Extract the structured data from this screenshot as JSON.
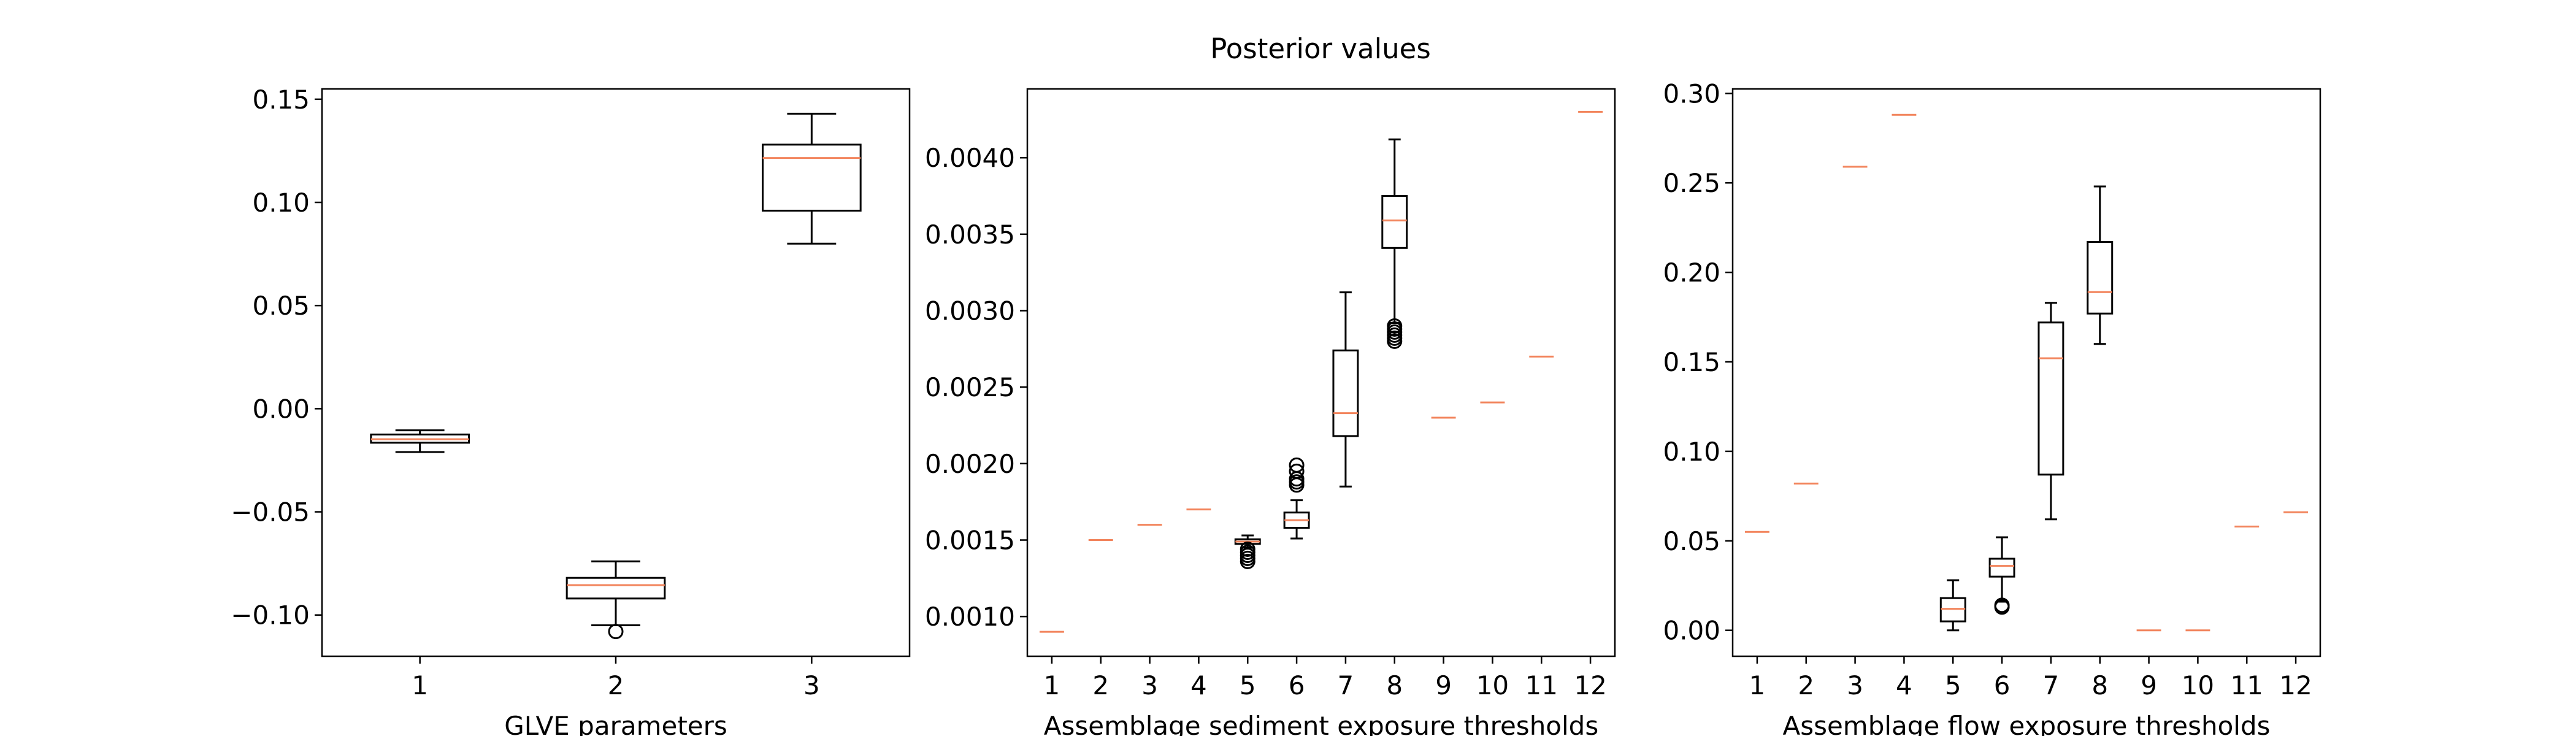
{
  "figure": {
    "suptitle": "Posterior values",
    "median_color": "#f2845c",
    "box_color": "#000000"
  },
  "chart_data": [
    {
      "type": "box",
      "title": "",
      "xlabel": "GLVE parameters",
      "ylabel": "",
      "categories": [
        "1",
        "2",
        "3"
      ],
      "ylim": [
        -0.12,
        0.155
      ],
      "yticks": [
        -0.1,
        -0.05,
        0.0,
        0.05,
        0.1,
        0.15
      ],
      "ytick_labels": [
        "−0.10",
        "−0.05",
        "0.00",
        "0.05",
        "0.10",
        "0.15"
      ],
      "boxes": [
        {
          "q1": -0.0165,
          "median": -0.0148,
          "q3": -0.0125,
          "whislo": -0.021,
          "whishi": -0.0105,
          "fliers": []
        },
        {
          "q1": -0.092,
          "median": -0.0855,
          "q3": -0.082,
          "whislo": -0.105,
          "whishi": -0.074,
          "fliers": [
            -0.108
          ]
        },
        {
          "q1": 0.096,
          "median": 0.1215,
          "q3": 0.128,
          "whislo": 0.08,
          "whishi": 0.143,
          "fliers": []
        }
      ]
    },
    {
      "type": "box",
      "title": "",
      "xlabel": "Assemblage sediment exposure thresholds",
      "ylabel": "",
      "categories": [
        "1",
        "2",
        "3",
        "4",
        "5",
        "6",
        "7",
        "8",
        "9",
        "10",
        "11",
        "12"
      ],
      "ylim": [
        0.00074,
        0.00445
      ],
      "yticks": [
        0.001,
        0.0015,
        0.002,
        0.0025,
        0.003,
        0.0035,
        0.004
      ],
      "ytick_labels": [
        "0.0010",
        "0.0015",
        "0.0020",
        "0.0025",
        "0.0030",
        "0.0035",
        "0.0040"
      ],
      "boxes": [
        {
          "q1": 0.0009,
          "median": 0.0009,
          "q3": 0.0009,
          "whislo": 0.0009,
          "whishi": 0.0009,
          "fliers": []
        },
        {
          "q1": 0.0015,
          "median": 0.0015,
          "q3": 0.0015,
          "whislo": 0.0015,
          "whishi": 0.0015,
          "fliers": []
        },
        {
          "q1": 0.0016,
          "median": 0.0016,
          "q3": 0.0016,
          "whislo": 0.0016,
          "whishi": 0.0016,
          "fliers": []
        },
        {
          "q1": 0.0017,
          "median": 0.0017,
          "q3": 0.0017,
          "whislo": 0.0017,
          "whishi": 0.0017,
          "fliers": []
        },
        {
          "q1": 0.001475,
          "median": 0.00149,
          "q3": 0.001505,
          "whislo": 0.00145,
          "whishi": 0.00153,
          "fliers": [
            0.00144,
            0.00142,
            0.0014,
            0.00138,
            0.00136
          ]
        },
        {
          "q1": 0.00158,
          "median": 0.00163,
          "q3": 0.00168,
          "whislo": 0.00151,
          "whishi": 0.00176,
          "fliers": [
            0.00186,
            0.00188,
            0.0019,
            0.00195,
            0.00199
          ]
        },
        {
          "q1": 0.00218,
          "median": 0.00233,
          "q3": 0.00274,
          "whislo": 0.00185,
          "whishi": 0.00312,
          "fliers": []
        },
        {
          "q1": 0.00341,
          "median": 0.00359,
          "q3": 0.00375,
          "whislo": 0.00292,
          "whishi": 0.00412,
          "fliers": [
            0.0029,
            0.00288,
            0.00286,
            0.00284,
            0.00282,
            0.0028
          ]
        },
        {
          "q1": 0.0023,
          "median": 0.0023,
          "q3": 0.0023,
          "whislo": 0.0023,
          "whishi": 0.0023,
          "fliers": []
        },
        {
          "q1": 0.0024,
          "median": 0.0024,
          "q3": 0.0024,
          "whislo": 0.0024,
          "whishi": 0.0024,
          "fliers": []
        },
        {
          "q1": 0.0027,
          "median": 0.0027,
          "q3": 0.0027,
          "whislo": 0.0027,
          "whishi": 0.0027,
          "fliers": []
        },
        {
          "q1": 0.0043,
          "median": 0.0043,
          "q3": 0.0043,
          "whislo": 0.0043,
          "whishi": 0.0043,
          "fliers": []
        }
      ]
    },
    {
      "type": "box",
      "title": "",
      "xlabel": "Assemblage flow exposure thresholds",
      "ylabel": "",
      "categories": [
        "1",
        "2",
        "3",
        "4",
        "5",
        "6",
        "7",
        "8",
        "9",
        "10",
        "11",
        "12"
      ],
      "ylim": [
        -0.0145,
        0.3025
      ],
      "yticks": [
        0.0,
        0.05,
        0.1,
        0.15,
        0.2,
        0.25,
        0.3
      ],
      "ytick_labels": [
        "0.00",
        "0.05",
        "0.10",
        "0.15",
        "0.20",
        "0.25",
        "0.30"
      ],
      "boxes": [
        {
          "q1": 0.055,
          "median": 0.055,
          "q3": 0.055,
          "whislo": 0.055,
          "whishi": 0.055,
          "fliers": []
        },
        {
          "q1": 0.082,
          "median": 0.082,
          "q3": 0.082,
          "whislo": 0.082,
          "whishi": 0.082,
          "fliers": []
        },
        {
          "q1": 0.259,
          "median": 0.259,
          "q3": 0.259,
          "whislo": 0.259,
          "whishi": 0.259,
          "fliers": []
        },
        {
          "q1": 0.288,
          "median": 0.288,
          "q3": 0.288,
          "whislo": 0.288,
          "whishi": 0.288,
          "fliers": []
        },
        {
          "q1": 0.005,
          "median": 0.012,
          "q3": 0.018,
          "whislo": 0.0,
          "whishi": 0.028,
          "fliers": []
        },
        {
          "q1": 0.03,
          "median": 0.036,
          "q3": 0.04,
          "whislo": 0.016,
          "whishi": 0.052,
          "fliers": [
            0.014,
            0.013
          ]
        },
        {
          "q1": 0.087,
          "median": 0.152,
          "q3": 0.172,
          "whislo": 0.062,
          "whishi": 0.183,
          "fliers": []
        },
        {
          "q1": 0.177,
          "median": 0.189,
          "q3": 0.217,
          "whislo": 0.16,
          "whishi": 0.248,
          "fliers": []
        },
        {
          "q1": 0.0,
          "median": 0.0,
          "q3": 0.0,
          "whislo": 0.0,
          "whishi": 0.0,
          "fliers": []
        },
        {
          "q1": 0.0,
          "median": 0.0,
          "q3": 0.0,
          "whislo": 0.0,
          "whishi": 0.0,
          "fliers": []
        },
        {
          "q1": 0.058,
          "median": 0.058,
          "q3": 0.058,
          "whislo": 0.058,
          "whishi": 0.058,
          "fliers": []
        },
        {
          "q1": 0.066,
          "median": 0.066,
          "q3": 0.066,
          "whislo": 0.066,
          "whishi": 0.066,
          "fliers": []
        }
      ]
    }
  ]
}
